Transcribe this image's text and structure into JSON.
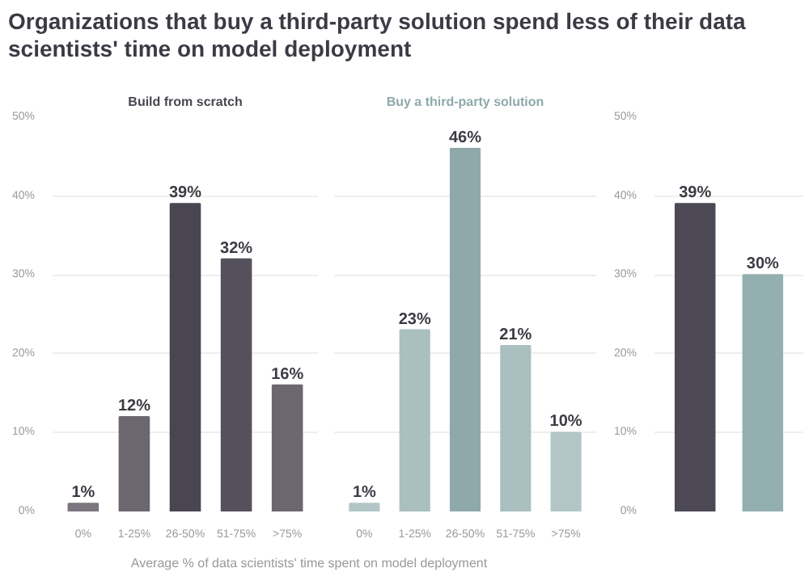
{
  "chart_data": [
    {
      "type": "bar",
      "title": "Organizations that buy a third-party solution spend less of their data scientists' time on model deployment",
      "subtitle": "Build from scratch",
      "xlabel": "Average % of data scientists' time spent on model deployment",
      "categories": [
        "0%",
        "1-25%",
        "26-50%",
        "51-75%",
        ">75%"
      ],
      "values": [
        1,
        12,
        39,
        32,
        16
      ],
      "colors": [
        "#7a757f",
        "#6b6670",
        "#4a4651",
        "#55515c",
        "#6b6670"
      ],
      "value_labels": [
        "1%",
        "12%",
        "39%",
        "32%",
        "16%"
      ],
      "ylim": [
        0,
        50
      ],
      "yticks": [
        {
          "value": 0,
          "label": "0%"
        },
        {
          "value": 10,
          "label": "10%"
        },
        {
          "value": 20,
          "label": "20%"
        },
        {
          "value": 30,
          "label": "30%"
        },
        {
          "value": 40,
          "label": "40%"
        },
        {
          "value": 50,
          "label": "50%"
        }
      ],
      "grid": "y"
    },
    {
      "type": "bar",
      "subtitle": "Buy a third-party solution",
      "categories": [
        "0%",
        "1-25%",
        "26-50%",
        "51-75%",
        ">75%"
      ],
      "values": [
        1,
        23,
        46,
        21,
        10
      ],
      "colors": [
        "#b2c6c7",
        "#a9bfc0",
        "#8fa9ab",
        "#a9bfc0",
        "#b2c6c7"
      ],
      "value_labels": [
        "1%",
        "23%",
        "46%",
        "21%",
        "10%"
      ],
      "ylim": [
        0,
        50
      ],
      "yticks": [
        {
          "value": 0,
          "label": null
        },
        {
          "value": 10,
          "label": null
        },
        {
          "value": 20,
          "label": null
        },
        {
          "value": 30,
          "label": null
        },
        {
          "value": 40,
          "label": null
        },
        {
          "value": 50,
          "label": null
        }
      ],
      "grid": "y",
      "tick_labels": "x"
    },
    {
      "type": "bar",
      "categories": [
        null,
        null
      ],
      "values": [
        39,
        30
      ],
      "colors": [
        "#4d4a56",
        "#94afb0"
      ],
      "value_labels": [
        "39%",
        "30%"
      ],
      "ylim": [
        0,
        50
      ],
      "yticks": [
        {
          "value": 0,
          "label": "0%"
        },
        {
          "value": 10,
          "label": "10%"
        },
        {
          "value": 20,
          "label": "20%"
        },
        {
          "value": 30,
          "label": "30%"
        },
        {
          "value": 40,
          "label": "40%"
        },
        {
          "value": 50,
          "label": "50%"
        }
      ],
      "grid": "y"
    }
  ]
}
